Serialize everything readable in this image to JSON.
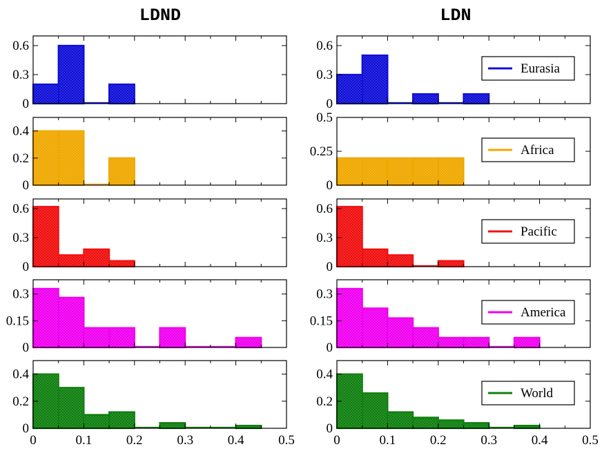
{
  "colors": {
    "Eurasia": "#1010d8",
    "Africa": "#f0a800",
    "Pacific": "#f01010",
    "America": "#f000f0",
    "World": "#108010"
  },
  "chart_data": {
    "type": "bar",
    "subtype": "histogram-grid",
    "bin_width": 0.05,
    "xlim": [
      0,
      0.5
    ],
    "x_ticks": [
      "0",
      "0.1",
      "0.2",
      "0.3",
      "0.4",
      "0.5"
    ],
    "columns": [
      {
        "title": "LDND"
      },
      {
        "title": "LDN"
      }
    ],
    "rows": [
      {
        "name": "Eurasia",
        "ylim": [
          0,
          0.7
        ],
        "y_ticks": [
          0,
          0.3,
          0.6
        ],
        "y_tick_labels": [
          "0",
          "0.3",
          "0.6"
        ]
      },
      {
        "name": "Africa",
        "ylim": [
          0,
          0.5
        ],
        "y_ticks": [
          0,
          0.2,
          0.4
        ],
        "y_tick_labels": [
          "0",
          "0.2",
          "0.4"
        ],
        "right_y_ticks": [
          0,
          0.25,
          0.5
        ],
        "right_y_tick_labels": [
          "0",
          "0.25",
          "0.5"
        ]
      },
      {
        "name": "Pacific",
        "ylim": [
          0,
          0.7
        ],
        "y_ticks": [
          0,
          0.3,
          0.6
        ],
        "y_tick_labels": [
          "0",
          "0.3",
          "0.6"
        ]
      },
      {
        "name": "America",
        "ylim": [
          0,
          0.38
        ],
        "y_ticks": [
          0,
          0.15,
          0.3
        ],
        "y_tick_labels": [
          "0",
          "0.15",
          "0.3"
        ]
      },
      {
        "name": "World",
        "ylim": [
          0,
          0.5
        ],
        "y_ticks": [
          0,
          0.2,
          0.4
        ],
        "y_tick_labels": [
          "0",
          "0.2",
          "0.4"
        ]
      }
    ],
    "series": {
      "LDND": {
        "Eurasia": [
          0.2,
          0.6,
          0.0,
          0.2
        ],
        "Africa": [
          0.4,
          0.4,
          0.0,
          0.2
        ],
        "Pacific": [
          0.62,
          0.12,
          0.18,
          0.06
        ],
        "America": [
          0.33,
          0.28,
          0.11,
          0.11,
          0.0,
          0.11,
          0.0,
          0.0,
          0.055
        ],
        "World": [
          0.4,
          0.3,
          0.1,
          0.12,
          0.0,
          0.04,
          0.0,
          0.0,
          0.02
        ]
      },
      "LDN": {
        "Eurasia": [
          0.3,
          0.5,
          0.0,
          0.1,
          0.0,
          0.1
        ],
        "Africa": [
          0.2,
          0.2,
          0.2,
          0.2,
          0.2
        ],
        "Pacific": [
          0.62,
          0.18,
          0.12,
          0.0,
          0.06
        ],
        "America": [
          0.33,
          0.22,
          0.165,
          0.11,
          0.055,
          0.055,
          0.0,
          0.055
        ],
        "World": [
          0.4,
          0.26,
          0.12,
          0.08,
          0.06,
          0.04,
          0.0,
          0.02
        ]
      }
    }
  }
}
